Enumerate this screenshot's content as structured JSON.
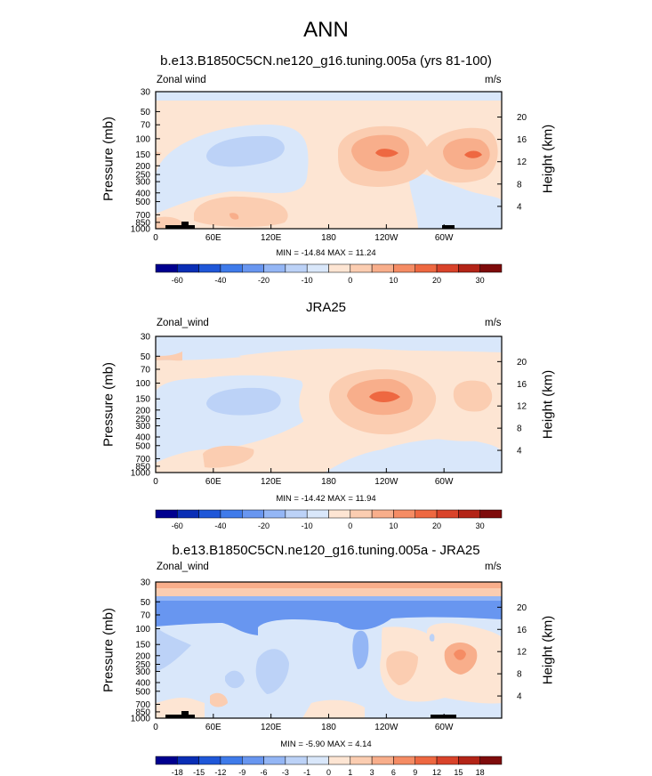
{
  "main_title": "ANN",
  "chart_data": [
    {
      "type": "heatmap",
      "title": "b.e13.B1850C5CN.ne120_g16.tuning.005a (yrs 81-100)",
      "left_label": "Zonal wind",
      "units": "m/s",
      "ylabel": "Pressure (mb)",
      "y2label": "Height (km)",
      "x_ticks": [
        "0",
        "60E",
        "120E",
        "180",
        "120W",
        "60W"
      ],
      "x_values": [
        0,
        60,
        120,
        180,
        240,
        300
      ],
      "xlim": [
        0,
        360
      ],
      "y_ticks": [
        "30",
        "50",
        "70",
        "100",
        "150",
        "200",
        "250",
        "300",
        "400",
        "500",
        "700",
        "850",
        "1000"
      ],
      "y_values": [
        30,
        50,
        70,
        100,
        150,
        200,
        250,
        300,
        400,
        500,
        700,
        850,
        1000
      ],
      "ylim": [
        1000,
        30
      ],
      "y_scale": "log",
      "y2_ticks": [
        "4",
        "8",
        "12",
        "16",
        "20"
      ],
      "y2_values": [
        4,
        8,
        12,
        16,
        20
      ],
      "min_max_text": "MIN = -14.84  MAX =  11.24",
      "min": -14.84,
      "max": 11.24,
      "colorbar_labels": [
        "-60",
        "-40",
        "-20",
        "-10",
        "0",
        "10",
        "20",
        "30"
      ],
      "colorbar_colors": [
        "#00008f",
        "#0a2eb5",
        "#1f57d8",
        "#3f7bea",
        "#6896f0",
        "#94b6f5",
        "#bcd2f7",
        "#d9e7fa",
        "#fde5d3",
        "#fbcdb1",
        "#f8ae8b",
        "#f58c64",
        "#ee6841",
        "#d9432a",
        "#b32417",
        "#7e0b0b"
      ]
    },
    {
      "type": "heatmap",
      "title": "JRA25",
      "left_label": "Zonal_wind",
      "units": "m/s",
      "ylabel": "Pressure (mb)",
      "y2label": "Height (km)",
      "x_ticks": [
        "0",
        "60E",
        "120E",
        "180",
        "120W",
        "60W"
      ],
      "x_values": [
        0,
        60,
        120,
        180,
        240,
        300
      ],
      "xlim": [
        0,
        360
      ],
      "y_ticks": [
        "30",
        "50",
        "70",
        "100",
        "150",
        "200",
        "250",
        "300",
        "400",
        "500",
        "700",
        "850",
        "1000"
      ],
      "y_values": [
        30,
        50,
        70,
        100,
        150,
        200,
        250,
        300,
        400,
        500,
        700,
        850,
        1000
      ],
      "ylim": [
        1000,
        30
      ],
      "y_scale": "log",
      "y2_ticks": [
        "4",
        "8",
        "12",
        "16",
        "20"
      ],
      "y2_values": [
        4,
        8,
        12,
        16,
        20
      ],
      "min_max_text": "MIN = -14.42  MAX =  11.94",
      "min": -14.42,
      "max": 11.94,
      "colorbar_labels": [
        "-60",
        "-40",
        "-20",
        "-10",
        "0",
        "10",
        "20",
        "30"
      ],
      "colorbar_colors": [
        "#00008f",
        "#0a2eb5",
        "#1f57d8",
        "#3f7bea",
        "#6896f0",
        "#94b6f5",
        "#bcd2f7",
        "#d9e7fa",
        "#fde5d3",
        "#fbcdb1",
        "#f8ae8b",
        "#f58c64",
        "#ee6841",
        "#d9432a",
        "#b32417",
        "#7e0b0b"
      ]
    },
    {
      "type": "heatmap",
      "title": "b.e13.B1850C5CN.ne120_g16.tuning.005a - JRA25",
      "left_label": "Zonal_wind",
      "units": "m/s",
      "ylabel": "Pressure (mb)",
      "y2label": "Height (km)",
      "x_ticks": [
        "0",
        "60E",
        "120E",
        "180",
        "120W",
        "60W"
      ],
      "x_values": [
        0,
        60,
        120,
        180,
        240,
        300
      ],
      "xlim": [
        0,
        360
      ],
      "y_ticks": [
        "30",
        "50",
        "70",
        "100",
        "150",
        "200",
        "250",
        "300",
        "400",
        "500",
        "700",
        "850",
        "1000"
      ],
      "y_values": [
        30,
        50,
        70,
        100,
        150,
        200,
        250,
        300,
        400,
        500,
        700,
        850,
        1000
      ],
      "ylim": [
        1000,
        30
      ],
      "y_scale": "log",
      "y2_ticks": [
        "4",
        "8",
        "12",
        "16",
        "20"
      ],
      "y2_values": [
        4,
        8,
        12,
        16,
        20
      ],
      "min_max_text": "MIN =  -5.90  MAX =   4.14",
      "min": -5.9,
      "max": 4.14,
      "colorbar_labels": [
        "-18",
        "-15",
        "-12",
        "-9",
        "-6",
        "-3",
        "-1",
        "0",
        "1",
        "3",
        "6",
        "9",
        "12",
        "15",
        "18"
      ],
      "colorbar_colors": [
        "#00008f",
        "#0a2eb5",
        "#1f57d8",
        "#3f7bea",
        "#6896f0",
        "#94b6f5",
        "#bcd2f7",
        "#d9e7fa",
        "#fde5d3",
        "#fbcdb1",
        "#f8ae8b",
        "#f58c64",
        "#ee6841",
        "#d9432a",
        "#b32417",
        "#7e0b0b"
      ]
    }
  ]
}
